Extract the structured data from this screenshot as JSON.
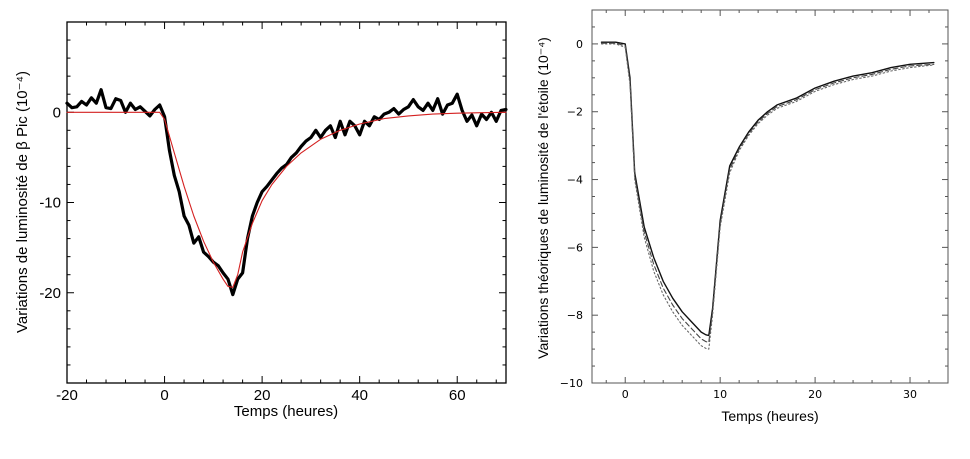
{
  "chart_data": [
    {
      "type": "line",
      "xlabel": "Temps (heures)",
      "ylabel": "Variations de luminosité de β Pic (10⁻⁴)",
      "xlim": [
        -20,
        70
      ],
      "ylim": [
        -30,
        10
      ],
      "xticks": [
        -20,
        0,
        20,
        40,
        60
      ],
      "yticks": [
        0,
        -10,
        -20
      ],
      "grid": false,
      "series": [
        {
          "color": "#000000",
          "x": [
            -20,
            -19,
            -18,
            -17,
            -16,
            -15,
            -14,
            -13,
            -12,
            -11,
            -10,
            -9,
            -8,
            -7,
            -6,
            -5,
            -4,
            -3,
            -2,
            -1,
            0,
            1,
            2,
            3,
            4,
            5,
            6,
            7,
            8,
            9,
            10,
            11,
            12,
            13,
            14,
            15,
            16,
            17,
            18,
            19,
            20,
            21,
            22,
            23,
            24,
            25,
            26,
            27,
            28,
            29,
            30,
            31,
            32,
            33,
            34,
            35,
            36,
            37,
            38,
            39,
            40,
            41,
            42,
            43,
            44,
            45,
            46,
            47,
            48,
            49,
            50,
            51,
            52,
            53,
            54,
            55,
            56,
            57,
            58,
            59,
            60,
            61,
            62,
            63,
            64,
            65,
            66,
            67,
            68,
            69,
            70
          ],
          "y": [
            1.0,
            0.5,
            0.6,
            1.2,
            0.8,
            1.6,
            1.0,
            2.5,
            0.5,
            0.4,
            1.5,
            1.3,
            0.0,
            1.0,
            0.3,
            0.6,
            0.1,
            -0.4,
            0.3,
            0.8,
            -0.5,
            -4.2,
            -7.0,
            -8.8,
            -11.5,
            -12.5,
            -14.5,
            -13.8,
            -15.5,
            -16.0,
            -16.6,
            -17.0,
            -17.8,
            -18.5,
            -20.2,
            -18.5,
            -17.8,
            -14.0,
            -11.5,
            -10.0,
            -8.8,
            -8.2,
            -7.5,
            -6.8,
            -6.2,
            -5.8,
            -5.0,
            -4.5,
            -3.8,
            -3.2,
            -2.8,
            -2.0,
            -2.8,
            -2.0,
            -1.5,
            -2.8,
            -1.0,
            -2.5,
            -1.0,
            -1.5,
            -2.5,
            -1.0,
            -1.5,
            -0.5,
            -0.8,
            -0.2,
            0.0,
            0.4,
            -0.2,
            0.3,
            0.6,
            1.4,
            0.6,
            0.2,
            1.0,
            0.2,
            1.5,
            -0.2,
            0.8,
            1.0,
            2.0,
            0.2,
            -1.0,
            -0.3,
            -1.5,
            -0.2,
            -0.8,
            0.0,
            -1.0,
            0.2,
            0.3
          ]
        },
        {
          "color": "#d42020",
          "x": [
            -20,
            -10,
            -5,
            -1,
            0,
            2,
            4,
            6,
            8,
            10,
            12,
            13,
            14,
            15,
            16,
            18,
            20,
            22,
            25,
            28,
            32,
            36,
            40,
            45,
            50,
            55,
            60,
            65,
            70
          ],
          "y": [
            0,
            0,
            0,
            0,
            -0.8,
            -4.5,
            -8.2,
            -11.5,
            -14.3,
            -16.6,
            -18.5,
            -19.3,
            -19.4,
            -18.0,
            -15.5,
            -12.3,
            -9.8,
            -8.0,
            -6.0,
            -4.5,
            -3.0,
            -2.0,
            -1.3,
            -0.7,
            -0.4,
            -0.2,
            -0.1,
            -0.05,
            0
          ]
        }
      ]
    },
    {
      "type": "line",
      "xlabel": "Temps (heures)",
      "ylabel": "Variations théoriques de luminosité de l'étoile (10⁻⁴)",
      "xlim": [
        -3.5,
        34
      ],
      "ylim": [
        -10,
        1
      ],
      "xticks": [
        0,
        10,
        20,
        30
      ],
      "yticks": [
        0,
        -2,
        -4,
        -6,
        -8,
        -10
      ],
      "grid": false,
      "series": [
        {
          "color": "#111111",
          "dash": "solid",
          "x": [
            -2.5,
            -1,
            0,
            0.5,
            1,
            2,
            3,
            4,
            5,
            6,
            7,
            8,
            8.5,
            8.8,
            9.2,
            10,
            11,
            12,
            13,
            14,
            15,
            16,
            18,
            20,
            22,
            24,
            26,
            28,
            30,
            32.5
          ],
          "y": [
            0.05,
            0.05,
            0,
            -1.0,
            -3.8,
            -5.4,
            -6.3,
            -7.0,
            -7.5,
            -7.9,
            -8.2,
            -8.5,
            -8.58,
            -8.6,
            -7.8,
            -5.2,
            -3.6,
            -3.05,
            -2.6,
            -2.25,
            -2.0,
            -1.8,
            -1.6,
            -1.3,
            -1.1,
            -0.95,
            -0.85,
            -0.7,
            -0.6,
            -0.55
          ]
        },
        {
          "color": "#444444",
          "dash": "dashed",
          "x": [
            -2.5,
            -1,
            0,
            0.5,
            1,
            2,
            3,
            4,
            5,
            6,
            7,
            8,
            8.5,
            8.8,
            9.2,
            10,
            11,
            12,
            13,
            14,
            15,
            16,
            18,
            20,
            22,
            24,
            26,
            28,
            30,
            32.5
          ],
          "y": [
            0.02,
            0.02,
            -0.05,
            -1.1,
            -3.9,
            -5.55,
            -6.5,
            -7.2,
            -7.7,
            -8.1,
            -8.4,
            -8.7,
            -8.78,
            -8.8,
            -7.9,
            -5.3,
            -3.7,
            -3.1,
            -2.65,
            -2.3,
            -2.05,
            -1.85,
            -1.65,
            -1.35,
            -1.15,
            -1.0,
            -0.9,
            -0.75,
            -0.65,
            -0.6
          ]
        },
        {
          "color": "#666666",
          "dash": "dotted",
          "x": [
            -2.5,
            -1,
            0,
            0.5,
            1,
            2,
            3,
            4,
            5,
            6,
            7,
            8,
            8.5,
            8.8,
            9.2,
            10,
            11,
            12,
            13,
            14,
            15,
            16,
            18,
            20,
            22,
            24,
            26,
            28,
            30,
            32.5
          ],
          "y": [
            0,
            0,
            -0.1,
            -1.2,
            -4.0,
            -5.7,
            -6.7,
            -7.4,
            -7.9,
            -8.3,
            -8.6,
            -8.9,
            -8.98,
            -9.0,
            -8.0,
            -5.4,
            -3.8,
            -3.15,
            -2.7,
            -2.35,
            -2.1,
            -1.9,
            -1.7,
            -1.4,
            -1.2,
            -1.05,
            -0.95,
            -0.8,
            -0.7,
            -0.62
          ]
        }
      ]
    }
  ]
}
